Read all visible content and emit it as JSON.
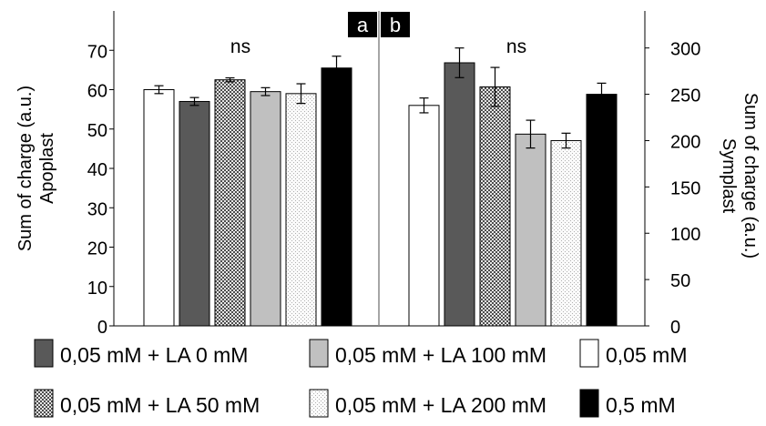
{
  "chart_data": [
    {
      "panel": "a",
      "type": "bar",
      "ylabel": [
        "Sum of charge (a.u.)",
        "Apoplast"
      ],
      "ylim": [
        0,
        80
      ],
      "yticks": [
        0,
        10,
        20,
        30,
        40,
        50,
        60,
        70
      ],
      "annotation": "ns",
      "categories": [
        "0,05 mM",
        "0,05 mM + LA 0 mM",
        "0,05 mM + LA 50 mM",
        "0,05 mM + LA 100 mM",
        "0,05 mM + LA 200 mM",
        "0,5 mM"
      ],
      "values": [
        60,
        57,
        62.5,
        59.5,
        59,
        65.5
      ],
      "errors": [
        1,
        1,
        0.5,
        1,
        2.5,
        3
      ]
    },
    {
      "panel": "b",
      "type": "bar",
      "ylabel": [
        "Sum of charge (a.u.)",
        "Symplast"
      ],
      "ylim": [
        0,
        340
      ],
      "yticks": [
        0,
        50,
        100,
        150,
        200,
        250,
        300
      ],
      "annotation": "ns",
      "categories": [
        "0,05 mM",
        "0,05 mM + LA 0 mM",
        "0,05 mM + LA 50 mM",
        "0,05 mM + LA 100 mM",
        "0,05 mM + LA 200 mM",
        "0,5 mM"
      ],
      "values": [
        238,
        284,
        258,
        207,
        200,
        250
      ],
      "errors": [
        8,
        16,
        21,
        15,
        8,
        12
      ]
    }
  ],
  "legend": [
    {
      "label": "0,05 mM + LA 0 mM",
      "style": "dark"
    },
    {
      "label": "0,05 mM + LA 100 mM",
      "style": "light"
    },
    {
      "label": "0,05 mM",
      "style": "white"
    },
    {
      "label": "0,05 mM + LA 50 mM",
      "style": "checker"
    },
    {
      "label": "0,05 mM + LA 200 mM",
      "style": "dotted"
    },
    {
      "label": "0,5 mM",
      "style": "black"
    }
  ],
  "styles": {
    "white": "#ffffff",
    "dark": "#595959",
    "light": "#c0c0c0",
    "black": "#000000"
  }
}
